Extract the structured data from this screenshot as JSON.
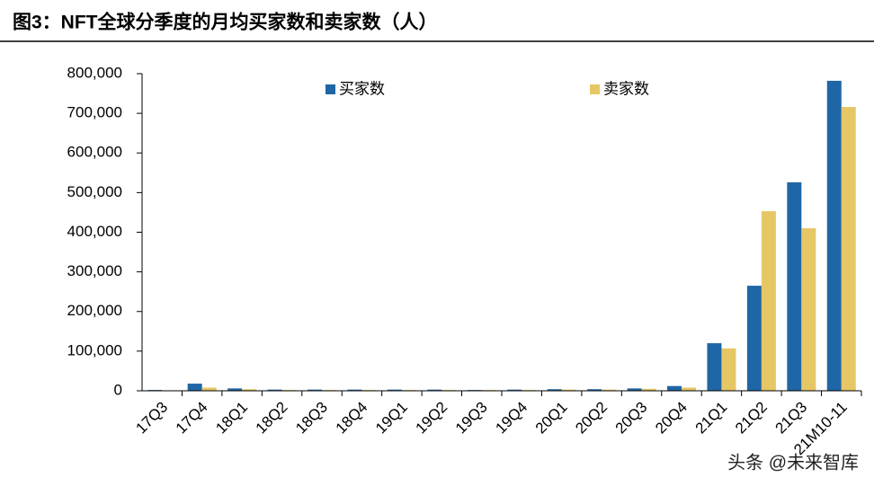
{
  "chart_data": {
    "type": "bar",
    "title": "图3：NFT全球分季度的月均买家数和卖家数（人）",
    "categories": [
      "17Q3",
      "17Q4",
      "18Q1",
      "18Q2",
      "18Q3",
      "18Q4",
      "19Q1",
      "19Q2",
      "19Q3",
      "19Q4",
      "20Q1",
      "20Q2",
      "20Q3",
      "20Q4",
      "21Q1",
      "21Q2",
      "21Q3",
      "21M10-11"
    ],
    "series": [
      {
        "name": "买家数",
        "color": "#1f66a6",
        "values": [
          2000,
          18000,
          6000,
          3000,
          3000,
          3000,
          3000,
          3000,
          2000,
          3000,
          4000,
          4000,
          6000,
          12000,
          120000,
          265000,
          526000,
          782000
        ]
      },
      {
        "name": "卖家数",
        "color": "#e6c766",
        "values": [
          1000,
          8000,
          4000,
          2000,
          2000,
          2000,
          2000,
          2000,
          2000,
          2000,
          3000,
          3000,
          5000,
          8000,
          107000,
          453000,
          410000,
          716000
        ]
      }
    ],
    "ylim": [
      0,
      800000
    ],
    "yticks": [
      0,
      {
        "value": 100000,
        "label": "100,000"
      },
      {
        "value": 200000,
        "label": "200,000"
      },
      {
        "value": 300000,
        "label": "300,000"
      },
      {
        "value": 400000,
        "label": "400,000"
      },
      {
        "value": 500000,
        "label": "500,000"
      },
      {
        "value": 600000,
        "label": "600,000"
      },
      {
        "value": 700000,
        "label": "700,000"
      },
      {
        "value": 800000,
        "label": "800,000"
      }
    ],
    "grid": false,
    "legend": "top",
    "watermark": "头条 @未来智库"
  }
}
